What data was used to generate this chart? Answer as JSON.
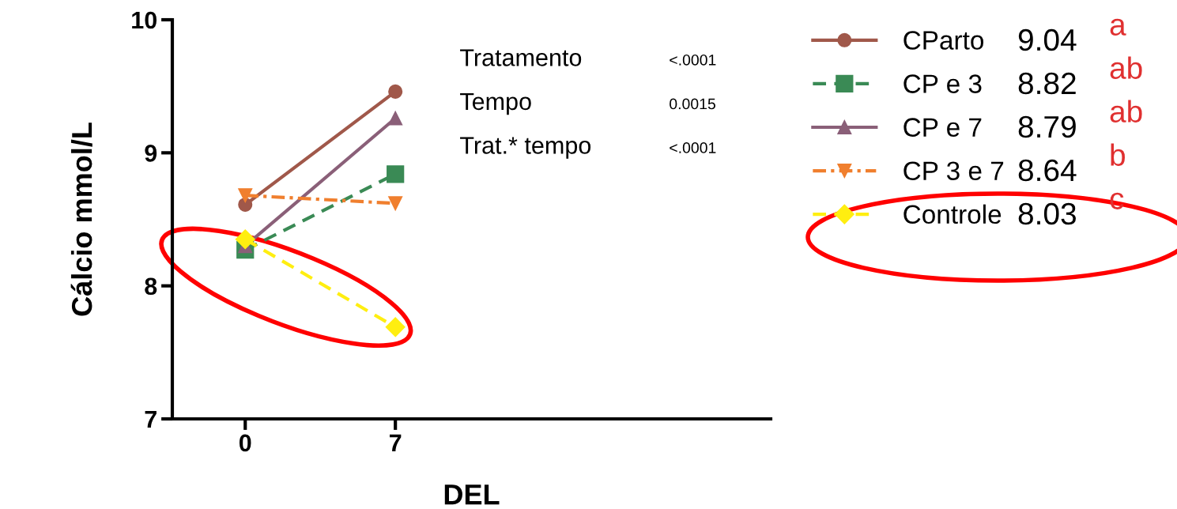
{
  "chart_data": {
    "type": "line",
    "xlabel": "DEL",
    "ylabel": "Cálcio mmol/L",
    "x": [
      0,
      7
    ],
    "xlim": [
      -3.4,
      24.5
    ],
    "xticks": [
      0,
      7
    ],
    "ylim": [
      7,
      10
    ],
    "yticks": [
      7,
      8,
      9,
      10
    ],
    "legend": "right",
    "grid": false,
    "series": [
      {
        "name": "CParto",
        "color": "#a0584a",
        "values": [
          8.61,
          9.46
        ],
        "marker": "circle",
        "line_style": "solid"
      },
      {
        "name": "CP e 3",
        "color": "#3a8a55",
        "values": [
          8.27,
          8.84
        ],
        "marker": "square",
        "line_style": "dashed"
      },
      {
        "name": "CP e 7",
        "color": "#8a5f78",
        "values": [
          8.3,
          9.26
        ],
        "marker": "triangle",
        "line_style": "solid"
      },
      {
        "name": "CP 3 e 7",
        "color": "#f07f2e",
        "values": [
          8.68,
          8.62
        ],
        "marker": "triangle_down",
        "line_style": "dashdot"
      },
      {
        "name": "Controle",
        "color": "#ffee10",
        "values": [
          8.35,
          7.69
        ],
        "marker": "diamond",
        "line_style": "dashed"
      }
    ],
    "annotations": [
      "Tratamento",
      "<.0001",
      "Tempo",
      "0.0015",
      "Trat.* tempo",
      "<.0001",
      "9.04",
      "8.82",
      "8.79",
      "8.64",
      "8.03",
      "a",
      "ab",
      "ab",
      "b",
      "c"
    ]
  }
}
